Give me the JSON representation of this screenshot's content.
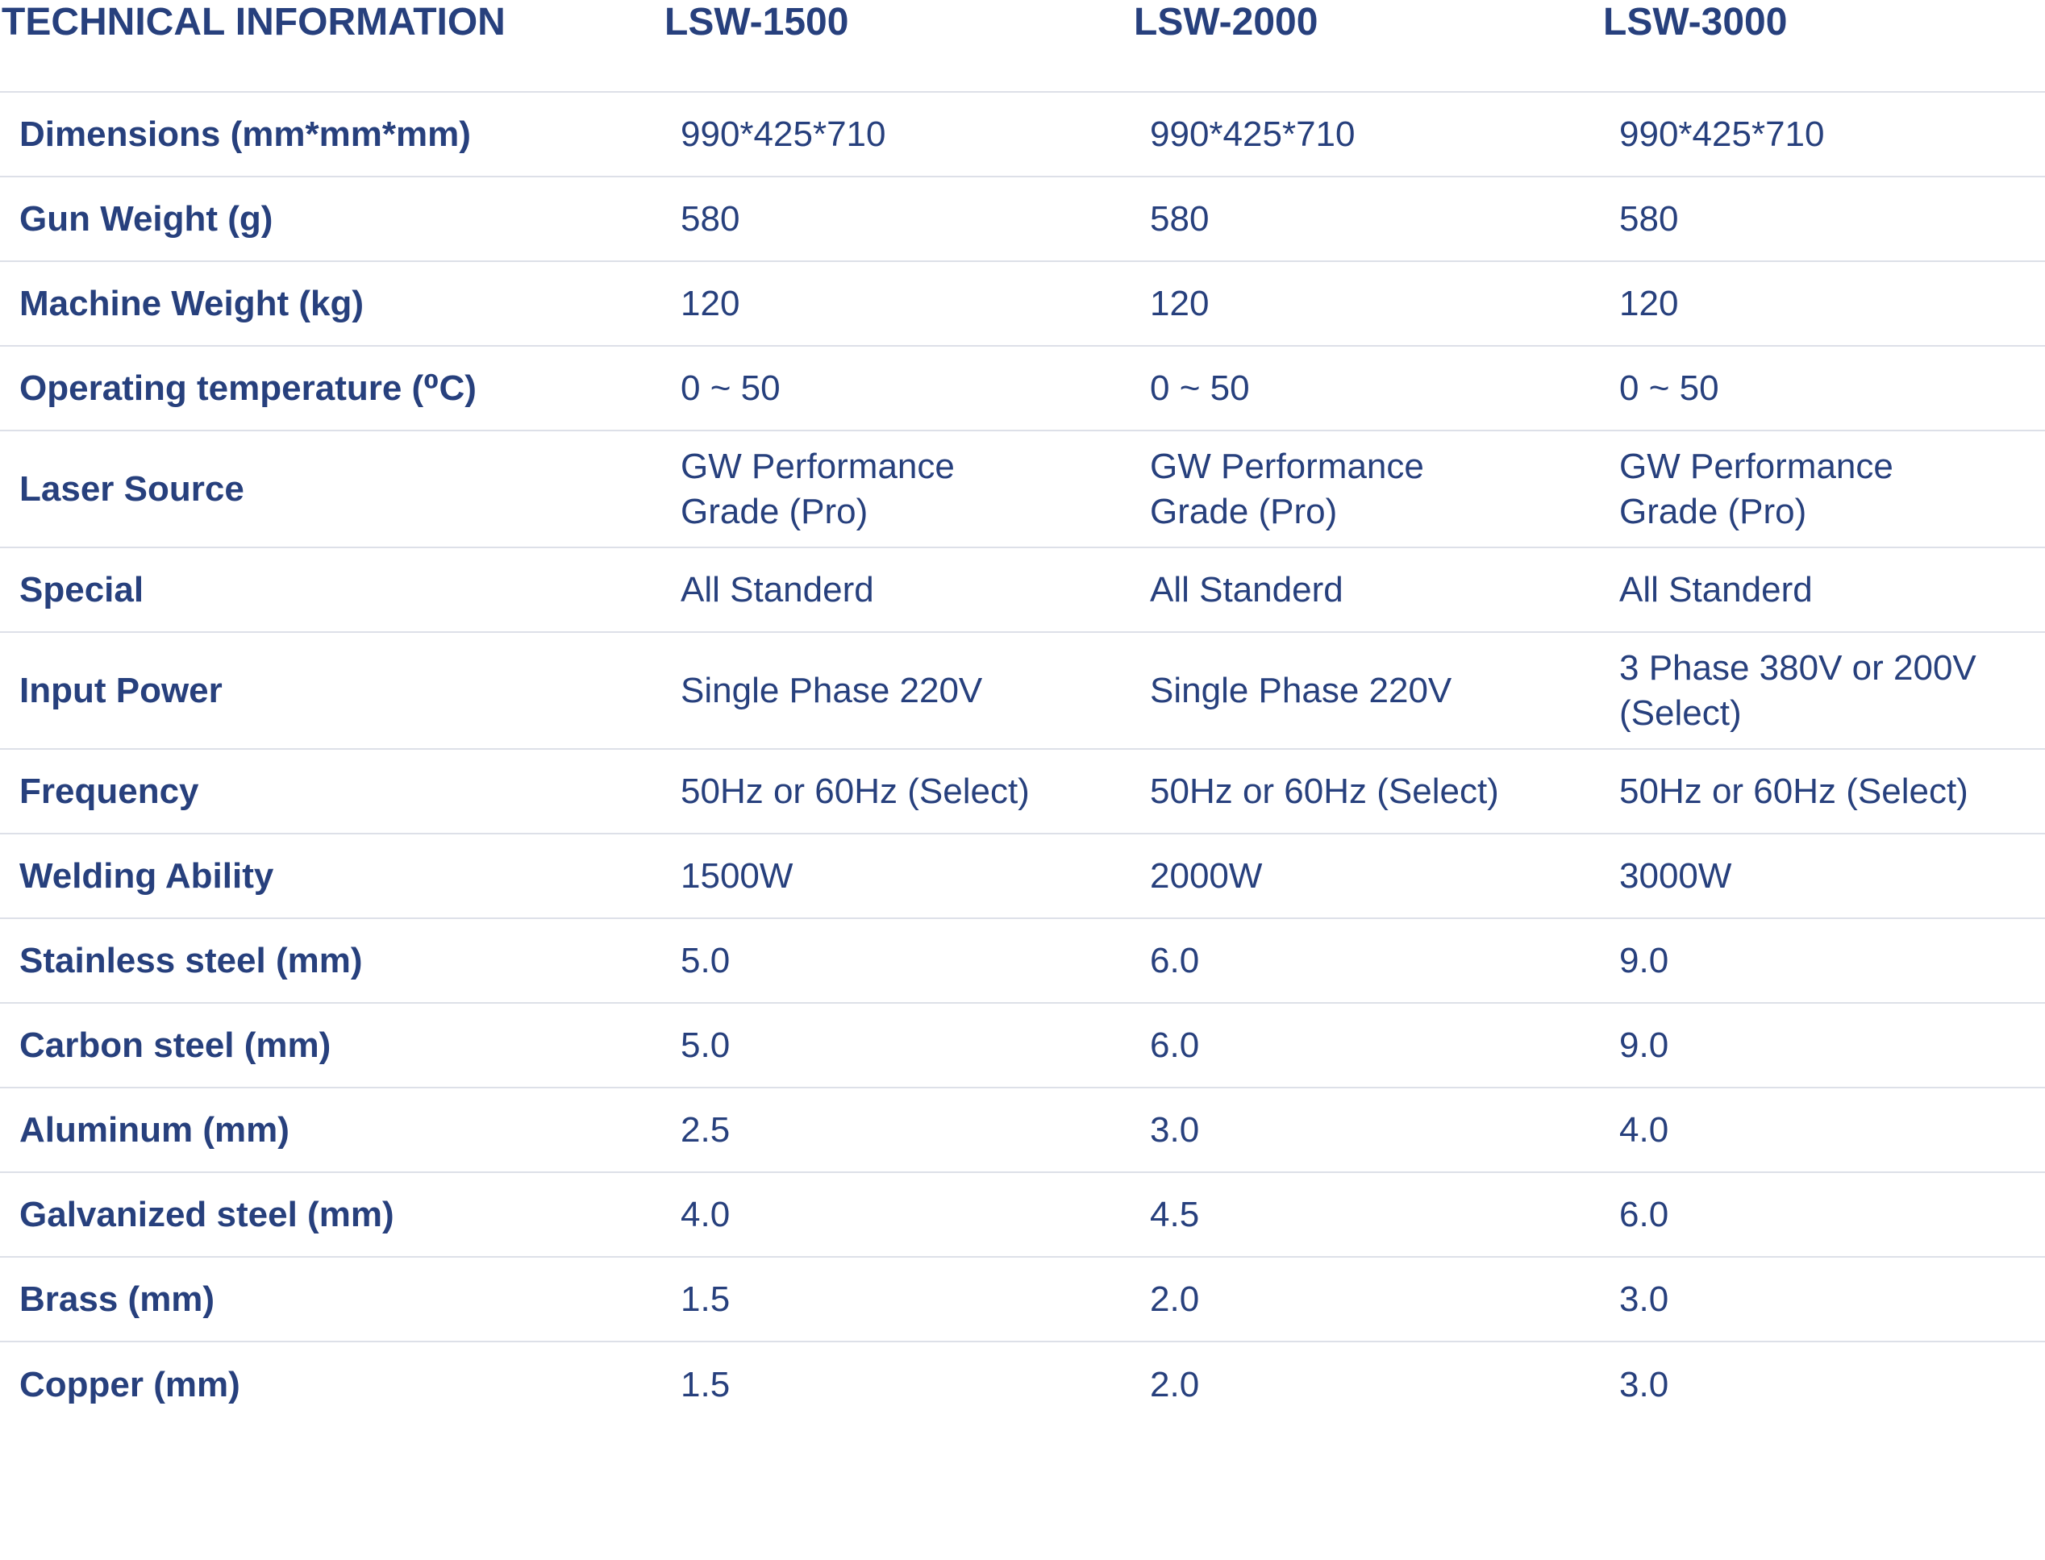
{
  "table": {
    "headers": [
      "TECHNICAL INFORMATION",
      "LSW-1500",
      "LSW-2000",
      "LSW-3000"
    ],
    "rows": [
      {
        "label": "Dimensions (mm*mm*mm)",
        "values": [
          "990*425*710",
          "990*425*710",
          "990*425*710"
        ]
      },
      {
        "label": "Gun Weight (g)",
        "values": [
          "580",
          "580",
          "580"
        ]
      },
      {
        "label": "Machine Weight (kg)",
        "values": [
          "120",
          "120",
          "120"
        ]
      },
      {
        "label": "Operating temperature (⁰C)",
        "values": [
          "0 ~ 50",
          "0 ~ 50",
          "0 ~ 50"
        ]
      },
      {
        "label": "Laser Source",
        "values": [
          "GW Performance Grade (Pro)",
          "GW Performance Grade (Pro)",
          "GW Performance Grade (Pro)"
        ]
      },
      {
        "label": "Special",
        "values": [
          "All Standerd",
          "All Standerd",
          "All Standerd"
        ]
      },
      {
        "label": "Input Power",
        "values": [
          "Single Phase 220V",
          "Single Phase 220V",
          "3 Phase 380V or 200V (Select)"
        ]
      },
      {
        "label": "Frequency",
        "values": [
          "50Hz or 60Hz (Select)",
          "50Hz or 60Hz (Select)",
          "50Hz or 60Hz (Select)"
        ]
      },
      {
        "label": "Welding Ability",
        "values": [
          "1500W",
          "2000W",
          "3000W"
        ]
      },
      {
        "label": "Stainless steel (mm)",
        "values": [
          "5.0",
          "6.0",
          "9.0"
        ]
      },
      {
        "label": "Carbon steel (mm)",
        "values": [
          "5.0",
          "6.0",
          "9.0"
        ]
      },
      {
        "label": "Aluminum (mm)",
        "values": [
          "2.5",
          "3.0",
          "4.0"
        ]
      },
      {
        "label": "Galvanized steel (mm)",
        "values": [
          "4.0",
          "4.5",
          "6.0"
        ]
      },
      {
        "label": "Brass (mm)",
        "values": [
          "1.5",
          "2.0",
          "3.0"
        ]
      },
      {
        "label": "Copper (mm)",
        "values": [
          "1.5",
          "2.0",
          "3.0"
        ]
      }
    ]
  }
}
